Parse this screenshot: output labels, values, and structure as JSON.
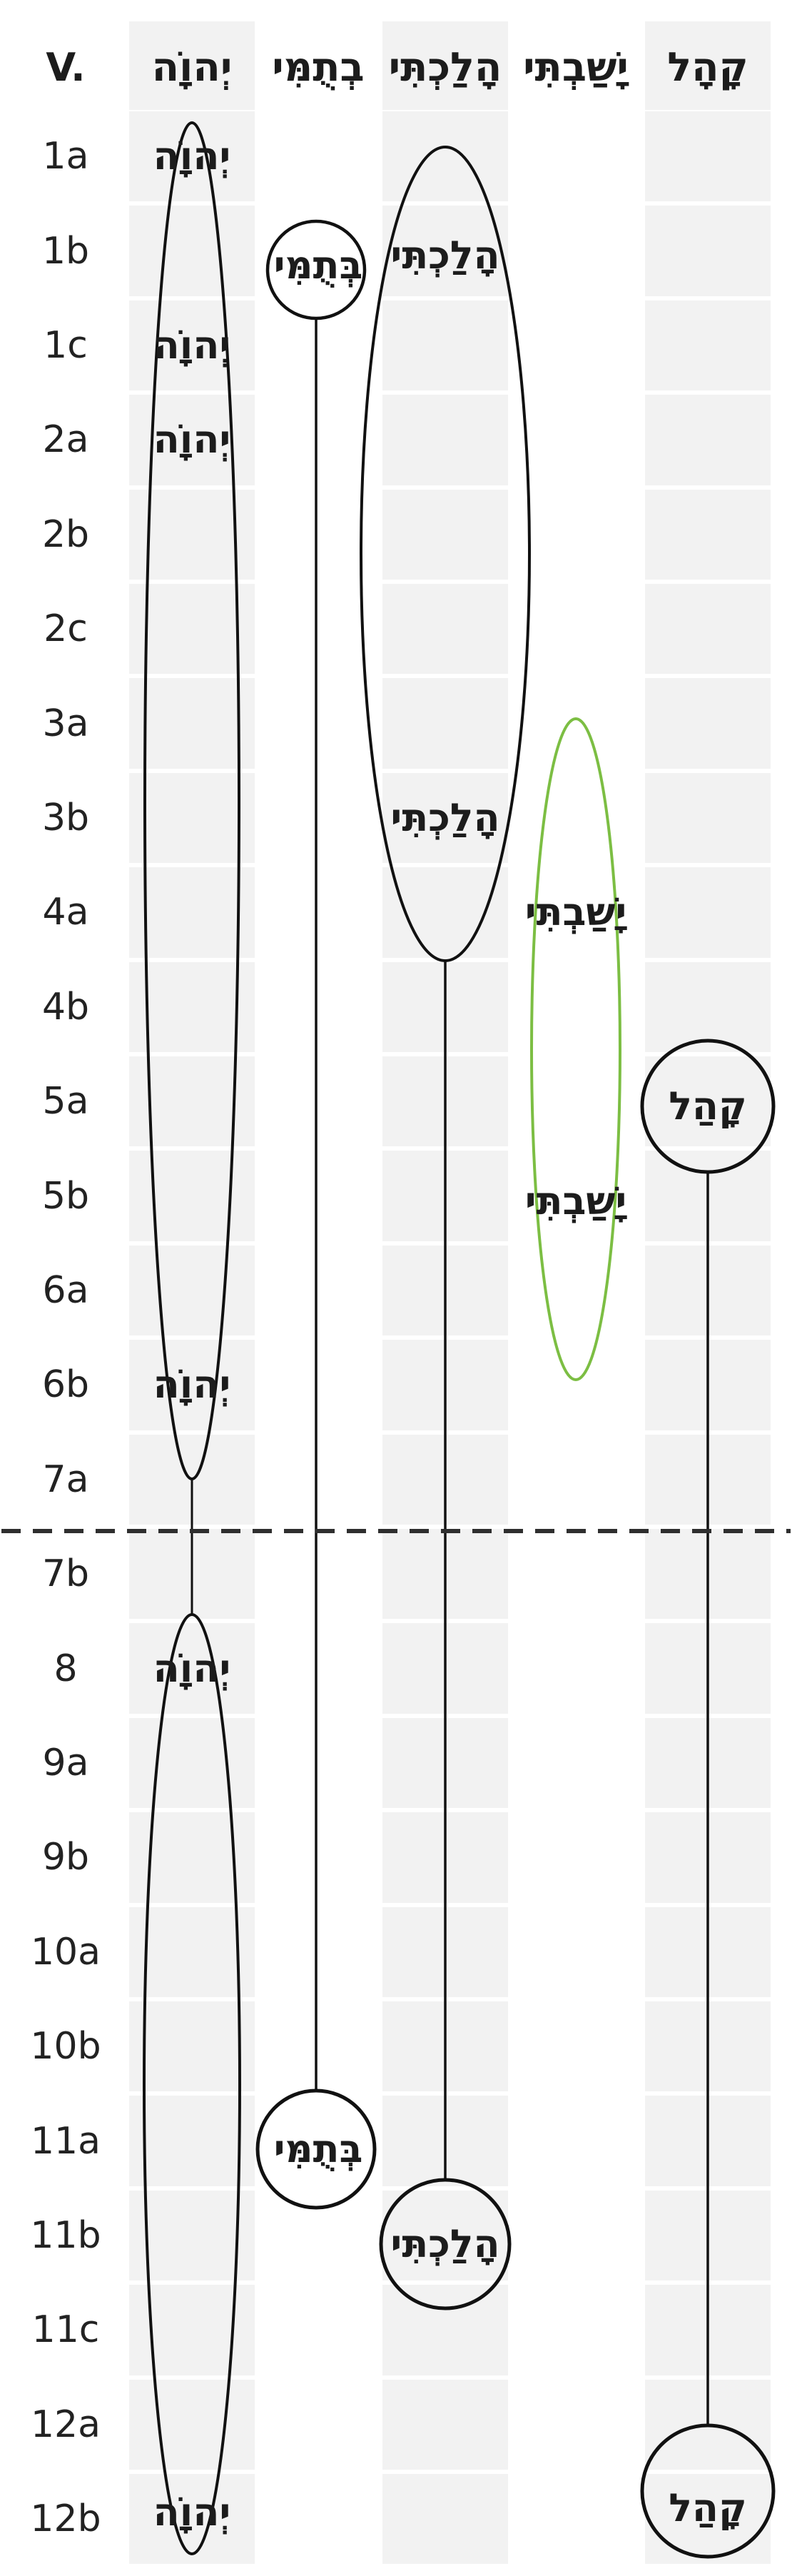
{
  "page": {
    "background": "#ffffff",
    "band_color": "#f2f2f2",
    "ink_color": "#111111",
    "text_color": "#1c1c1c",
    "highlight_color": "#7cbe43",
    "divider_color": "#2f2f2f"
  },
  "header": {
    "verse_column_label": "V."
  },
  "rows": [
    "1a",
    "1b",
    "1c",
    "2a",
    "2b",
    "2c",
    "3a",
    "3b",
    "4a",
    "4b",
    "5a",
    "5b",
    "6a",
    "6b",
    "7a",
    "7b",
    "8",
    "9a",
    "9b",
    "10a",
    "10b",
    "11a",
    "11b",
    "11c",
    "12a",
    "12b"
  ],
  "columns": [
    {
      "id": "yhwh",
      "header": "יְהוָֹה",
      "band": true,
      "occurrences": [
        {
          "row": "1a",
          "text": "יְהוָֹה"
        },
        {
          "row": "1c",
          "text": "יְהוָֹה"
        },
        {
          "row": "2a",
          "text": "יְהוָֹה"
        },
        {
          "row": "6b",
          "text": "יְהוָֹה"
        },
        {
          "row": "8",
          "text": "יְהוָֹה"
        },
        {
          "row": "12b",
          "text": "יְהוָֹה"
        }
      ]
    },
    {
      "id": "btummi",
      "header": "בְתֻמִּי",
      "band": false,
      "occurrences": [
        {
          "row": "1b",
          "text": "בְּתֻמִּי"
        },
        {
          "row": "11a",
          "text": "בְּתֻמִּי"
        }
      ]
    },
    {
      "id": "halakhti",
      "header": "הָלַכְתִּי",
      "band": true,
      "occurrences": [
        {
          "row": "1b",
          "text": "הָלַכְתִּי"
        },
        {
          "row": "3b",
          "text": "הָלַכְתִּי"
        },
        {
          "row": "11b",
          "text": "הָלַכְתִּי"
        }
      ]
    },
    {
      "id": "yashavti",
      "header": "יָשַׁבְתִּי",
      "band": false,
      "occurrences": [
        {
          "row": "4a",
          "text": "יָשַׁבְתִּי"
        },
        {
          "row": "5b",
          "text": "יָשַׁבְתִּי"
        }
      ]
    },
    {
      "id": "qahal",
      "header": "קָהָל",
      "band": true,
      "occurrences": [
        {
          "row": "5a",
          "text": "קָהַל"
        },
        {
          "row": "12b",
          "text": "קָהַל"
        }
      ]
    }
  ],
  "shapes": [
    {
      "id": "yhwh-ellipse-upper",
      "type": "grouping-ellipse",
      "word": "יְהוָֹה",
      "rows": "1a–7a",
      "color": "#111111"
    },
    {
      "id": "yhwh-connector",
      "type": "connector-line",
      "word": "יְהוָֹה",
      "rows": "7a–7b",
      "color": "#111111"
    },
    {
      "id": "yhwh-ellipse-lower",
      "type": "grouping-ellipse",
      "word": "יְהוָֹה",
      "rows": "7b–12b",
      "color": "#111111"
    },
    {
      "id": "btummi-circle-1b",
      "type": "occurrence-circle",
      "word": "בְּתֻמִּי",
      "rows": "1b",
      "color": "#111111"
    },
    {
      "id": "btummi-connector",
      "type": "connector-line",
      "word": "בְּתֻמִּי",
      "rows": "1b–11a",
      "color": "#111111"
    },
    {
      "id": "btummi-circle-11a",
      "type": "occurrence-circle",
      "word": "בְּתֻמִּי",
      "rows": "11a",
      "color": "#111111"
    },
    {
      "id": "halakhti-ellipse",
      "type": "grouping-ellipse",
      "word": "הָלַכְתִּי",
      "rows": "1b–4a",
      "color": "#111111"
    },
    {
      "id": "halakhti-connector",
      "type": "connector-line",
      "word": "הָלַכְתִּי",
      "rows": "4a–11b",
      "color": "#111111"
    },
    {
      "id": "halakhti-circle-11b",
      "type": "occurrence-circle",
      "word": "הָלַכְתִּי",
      "rows": "11b",
      "color": "#111111"
    },
    {
      "id": "yashavti-ellipse",
      "type": "grouping-ellipse",
      "word": "יָשַׁבְתִּי",
      "rows": "3a–6b",
      "color": "#7cbe43"
    },
    {
      "id": "qahal-circle-5a",
      "type": "occurrence-circle",
      "word": "קָהַל",
      "rows": "5a",
      "color": "#111111"
    },
    {
      "id": "qahal-connector",
      "type": "connector-line",
      "word": "קָהַל",
      "rows": "5a–12a",
      "color": "#111111"
    },
    {
      "id": "qahal-circle-12b",
      "type": "occurrence-circle",
      "word": "קָהַל",
      "rows": "12a–12b",
      "color": "#111111"
    },
    {
      "id": "section-divider",
      "type": "divider-dashed-line",
      "word": "",
      "rows": "between 7a and 7b",
      "color": "#2f2f2f"
    }
  ]
}
